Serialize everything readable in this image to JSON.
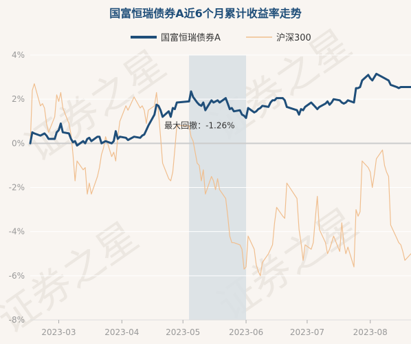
{
  "chart_data": {
    "type": "line",
    "title": "国富恒瑞债券A近6个月累计收益率走势",
    "xlabel": "",
    "ylabel": "",
    "ylim": [
      -8,
      4
    ],
    "yticks": [
      4,
      2,
      0,
      -2,
      -4,
      -6,
      -8
    ],
    "ytick_labels": [
      "4%",
      "2%",
      "0%",
      "-2%",
      "-4%",
      "-6%",
      "-8%"
    ],
    "x_range": [
      "2023-02-15",
      "2023-08-21"
    ],
    "x_ticks": [
      {
        "date": "2023-03-01",
        "label": "2023-03"
      },
      {
        "date": "2023-04-01",
        "label": "2023-04"
      },
      {
        "date": "2023-05-01",
        "label": "2023-05"
      },
      {
        "date": "2023-06-01",
        "label": "2023-06"
      },
      {
        "date": "2023-07-01",
        "label": "2023-07"
      },
      {
        "date": "2023-08-01",
        "label": "2023-08"
      }
    ],
    "grid": true,
    "legend_position": "top",
    "drawdown": {
      "label": "最大回撤：-1.26%",
      "start": "2023-05-04",
      "end": "2023-06-01",
      "color": "#d8dfe4"
    },
    "series": [
      {
        "name": "国富恒瑞债券A",
        "color": "#1f4e79",
        "points": [
          [
            "2023-02-15",
            0.0
          ],
          [
            "2023-02-16",
            0.5
          ],
          [
            "2023-02-17",
            0.45
          ],
          [
            "2023-02-20",
            0.35
          ],
          [
            "2023-02-21",
            0.4
          ],
          [
            "2023-02-22",
            0.45
          ],
          [
            "2023-02-23",
            0.35
          ],
          [
            "2023-02-24",
            0.2
          ],
          [
            "2023-02-27",
            0.2
          ],
          [
            "2023-02-28",
            0.5
          ],
          [
            "2023-03-01",
            0.6
          ],
          [
            "2023-03-02",
            0.9
          ],
          [
            "2023-03-03",
            0.5
          ],
          [
            "2023-03-06",
            0.45
          ],
          [
            "2023-03-07",
            0.2
          ],
          [
            "2023-03-08",
            0.05
          ],
          [
            "2023-03-09",
            0.1
          ],
          [
            "2023-03-10",
            -0.1
          ],
          [
            "2023-03-13",
            0.1
          ],
          [
            "2023-03-14",
            0.0
          ],
          [
            "2023-03-15",
            0.2
          ],
          [
            "2023-03-16",
            0.25
          ],
          [
            "2023-03-17",
            0.1
          ],
          [
            "2023-03-20",
            0.3
          ],
          [
            "2023-03-21",
            0.3
          ],
          [
            "2023-03-22",
            0.0
          ],
          [
            "2023-03-23",
            0.05
          ],
          [
            "2023-03-24",
            0.1
          ],
          [
            "2023-03-27",
            0.0
          ],
          [
            "2023-03-28",
            0.1
          ],
          [
            "2023-03-29",
            0.55
          ],
          [
            "2023-03-30",
            0.2
          ],
          [
            "2023-03-31",
            0.3
          ],
          [
            "2023-04-03",
            0.25
          ],
          [
            "2023-04-04",
            0.15
          ],
          [
            "2023-04-06",
            0.25
          ],
          [
            "2023-04-07",
            0.3
          ],
          [
            "2023-04-10",
            0.25
          ],
          [
            "2023-04-11",
            0.35
          ],
          [
            "2023-04-12",
            0.4
          ],
          [
            "2023-04-13",
            0.6
          ],
          [
            "2023-04-14",
            0.8
          ],
          [
            "2023-04-17",
            1.3
          ],
          [
            "2023-04-18",
            1.75
          ],
          [
            "2023-04-19",
            1.7
          ],
          [
            "2023-04-20",
            1.5
          ],
          [
            "2023-04-21",
            1.2
          ],
          [
            "2023-04-24",
            1.45
          ],
          [
            "2023-04-25",
            1.2
          ],
          [
            "2023-04-26",
            1.6
          ],
          [
            "2023-04-27",
            1.55
          ],
          [
            "2023-04-28",
            1.85
          ],
          [
            "2023-05-04",
            1.9
          ],
          [
            "2023-05-05",
            2.35
          ],
          [
            "2023-05-06",
            2.1
          ],
          [
            "2023-05-08",
            1.85
          ],
          [
            "2023-05-09",
            1.75
          ],
          [
            "2023-05-10",
            1.7
          ],
          [
            "2023-05-11",
            1.85
          ],
          [
            "2023-05-12",
            1.5
          ],
          [
            "2023-05-15",
            1.95
          ],
          [
            "2023-05-16",
            1.85
          ],
          [
            "2023-05-17",
            1.9
          ],
          [
            "2023-05-18",
            1.95
          ],
          [
            "2023-05-19",
            1.85
          ],
          [
            "2023-05-22",
            2.05
          ],
          [
            "2023-05-23",
            1.8
          ],
          [
            "2023-05-24",
            1.55
          ],
          [
            "2023-05-25",
            1.6
          ],
          [
            "2023-05-26",
            1.45
          ],
          [
            "2023-05-29",
            1.5
          ],
          [
            "2023-05-30",
            1.3
          ],
          [
            "2023-05-31",
            1.25
          ],
          [
            "2023-06-01",
            1.15
          ],
          [
            "2023-06-02",
            1.6
          ],
          [
            "2023-06-05",
            1.4
          ],
          [
            "2023-06-06",
            1.45
          ],
          [
            "2023-06-07",
            1.55
          ],
          [
            "2023-06-08",
            1.6
          ],
          [
            "2023-06-09",
            1.7
          ],
          [
            "2023-06-12",
            1.65
          ],
          [
            "2023-06-13",
            1.85
          ],
          [
            "2023-06-14",
            1.95
          ],
          [
            "2023-06-15",
            1.95
          ],
          [
            "2023-06-16",
            2.05
          ],
          [
            "2023-06-19",
            2.05
          ],
          [
            "2023-06-20",
            1.95
          ],
          [
            "2023-06-21",
            1.65
          ],
          [
            "2023-06-26",
            1.5
          ],
          [
            "2023-06-27",
            1.3
          ],
          [
            "2023-06-28",
            1.55
          ],
          [
            "2023-06-29",
            1.5
          ],
          [
            "2023-06-30",
            1.65
          ],
          [
            "2023-07-03",
            1.85
          ],
          [
            "2023-07-04",
            1.75
          ],
          [
            "2023-07-05",
            1.65
          ],
          [
            "2023-07-06",
            1.55
          ],
          [
            "2023-07-07",
            1.65
          ],
          [
            "2023-07-10",
            1.8
          ],
          [
            "2023-07-11",
            1.9
          ],
          [
            "2023-07-12",
            1.75
          ],
          [
            "2023-07-13",
            1.85
          ],
          [
            "2023-07-14",
            2.0
          ],
          [
            "2023-07-17",
            1.95
          ],
          [
            "2023-07-18",
            1.85
          ],
          [
            "2023-07-19",
            1.8
          ],
          [
            "2023-07-20",
            1.85
          ],
          [
            "2023-07-21",
            1.95
          ],
          [
            "2023-07-24",
            1.85
          ],
          [
            "2023-07-25",
            2.5
          ],
          [
            "2023-07-26",
            2.5
          ],
          [
            "2023-07-27",
            2.55
          ],
          [
            "2023-07-28",
            2.85
          ],
          [
            "2023-07-31",
            3.1
          ],
          [
            "2023-08-01",
            2.95
          ],
          [
            "2023-08-02",
            2.85
          ],
          [
            "2023-08-03",
            3.0
          ],
          [
            "2023-08-04",
            3.15
          ],
          [
            "2023-08-07",
            3.0
          ],
          [
            "2023-08-08",
            2.95
          ],
          [
            "2023-08-09",
            2.9
          ],
          [
            "2023-08-10",
            2.85
          ],
          [
            "2023-08-11",
            2.65
          ],
          [
            "2023-08-14",
            2.55
          ],
          [
            "2023-08-15",
            2.5
          ],
          [
            "2023-08-16",
            2.55
          ],
          [
            "2023-08-17",
            2.55
          ],
          [
            "2023-08-18",
            2.55
          ],
          [
            "2023-08-21",
            2.55
          ]
        ]
      },
      {
        "name": "沪深300",
        "color": "#f0be8e",
        "points": [
          [
            "2023-02-15",
            0.0
          ],
          [
            "2023-02-16",
            2.4
          ],
          [
            "2023-02-17",
            2.7
          ],
          [
            "2023-02-20",
            1.7
          ],
          [
            "2023-02-21",
            1.8
          ],
          [
            "2023-02-22",
            1.6
          ],
          [
            "2023-02-23",
            0.9
          ],
          [
            "2023-02-24",
            0.5
          ],
          [
            "2023-02-27",
            1.2
          ],
          [
            "2023-02-28",
            2.2
          ],
          [
            "2023-03-01",
            1.9
          ],
          [
            "2023-03-02",
            2.3
          ],
          [
            "2023-03-03",
            1.6
          ],
          [
            "2023-03-06",
            0.9
          ],
          [
            "2023-03-07",
            0.4
          ],
          [
            "2023-03-08",
            -0.5
          ],
          [
            "2023-03-09",
            -1.7
          ],
          [
            "2023-03-10",
            -0.8
          ],
          [
            "2023-03-13",
            -1.2
          ],
          [
            "2023-03-14",
            -1.1
          ],
          [
            "2023-03-15",
            -2.3
          ],
          [
            "2023-03-16",
            -1.8
          ],
          [
            "2023-03-17",
            -2.3
          ],
          [
            "2023-03-20",
            -1.5
          ],
          [
            "2023-03-21",
            -1.1
          ],
          [
            "2023-03-22",
            -0.5
          ],
          [
            "2023-03-23",
            -0.2
          ],
          [
            "2023-03-24",
            0.3
          ],
          [
            "2023-03-27",
            -0.6
          ],
          [
            "2023-03-28",
            -0.4
          ],
          [
            "2023-03-29",
            -0.8
          ],
          [
            "2023-03-30",
            0.3
          ],
          [
            "2023-03-31",
            1.0
          ],
          [
            "2023-04-03",
            1.7
          ],
          [
            "2023-04-04",
            1.5
          ],
          [
            "2023-04-06",
            1.9
          ],
          [
            "2023-04-07",
            2.1
          ],
          [
            "2023-04-10",
            1.6
          ],
          [
            "2023-04-11",
            1.7
          ],
          [
            "2023-04-12",
            1.5
          ],
          [
            "2023-04-13",
            0.9
          ],
          [
            "2023-04-14",
            1.5
          ],
          [
            "2023-04-17",
            1.7
          ],
          [
            "2023-04-18",
            2.3
          ],
          [
            "2023-04-19",
            1.4
          ],
          [
            "2023-04-20",
            0.3
          ],
          [
            "2023-04-21",
            -0.9
          ],
          [
            "2023-04-24",
            -1.6
          ],
          [
            "2023-04-25",
            -1.7
          ],
          [
            "2023-04-26",
            -1.3
          ],
          [
            "2023-04-27",
            -0.3
          ],
          [
            "2023-04-28",
            0.8
          ],
          [
            "2023-05-04",
            0.8
          ],
          [
            "2023-05-05",
            0.3
          ],
          [
            "2023-05-06",
            0.1
          ],
          [
            "2023-05-08",
            -0.9
          ],
          [
            "2023-05-09",
            -1.0
          ],
          [
            "2023-05-10",
            -1.7
          ],
          [
            "2023-05-11",
            -1.2
          ],
          [
            "2023-05-12",
            -2.3
          ],
          [
            "2023-05-15",
            -1.5
          ],
          [
            "2023-05-16",
            -1.7
          ],
          [
            "2023-05-17",
            -2.1
          ],
          [
            "2023-05-18",
            -1.6
          ],
          [
            "2023-05-19",
            -2.1
          ],
          [
            "2023-05-22",
            -2.5
          ],
          [
            "2023-05-23",
            -3.3
          ],
          [
            "2023-05-24",
            -4.2
          ],
          [
            "2023-05-25",
            -4.5
          ],
          [
            "2023-05-26",
            -4.5
          ],
          [
            "2023-05-29",
            -4.6
          ],
          [
            "2023-05-30",
            -4.8
          ],
          [
            "2023-05-31",
            -5.7
          ],
          [
            "2023-06-01",
            -5.6
          ],
          [
            "2023-06-02",
            -4.2
          ],
          [
            "2023-06-05",
            -4.8
          ],
          [
            "2023-06-06",
            -5.5
          ],
          [
            "2023-06-07",
            -5.8
          ],
          [
            "2023-06-08",
            -6.0
          ],
          [
            "2023-06-09",
            -5.4
          ],
          [
            "2023-06-12",
            -5.0
          ],
          [
            "2023-06-13",
            -4.8
          ],
          [
            "2023-06-14",
            -4.6
          ],
          [
            "2023-06-15",
            -3.6
          ],
          [
            "2023-06-16",
            -2.9
          ],
          [
            "2023-06-19",
            -3.3
          ],
          [
            "2023-06-20",
            -3.4
          ],
          [
            "2023-06-21",
            -1.8
          ],
          [
            "2023-06-26",
            -2.5
          ],
          [
            "2023-06-27",
            -3.9
          ],
          [
            "2023-06-28",
            -4.5
          ],
          [
            "2023-06-29",
            -5.3
          ],
          [
            "2023-06-30",
            -4.6
          ],
          [
            "2023-07-03",
            -4.8
          ],
          [
            "2023-07-04",
            -4.5
          ],
          [
            "2023-07-05",
            -3.4
          ],
          [
            "2023-07-06",
            -2.4
          ],
          [
            "2023-07-07",
            -3.9
          ],
          [
            "2023-07-10",
            -4.5
          ],
          [
            "2023-07-11",
            -5.0
          ],
          [
            "2023-07-12",
            -4.8
          ],
          [
            "2023-07-13",
            -4.5
          ],
          [
            "2023-07-14",
            -4.2
          ],
          [
            "2023-07-17",
            -4.9
          ],
          [
            "2023-07-18",
            -3.6
          ],
          [
            "2023-07-19",
            -4.5
          ],
          [
            "2023-07-20",
            -5.0
          ],
          [
            "2023-07-21",
            -4.7
          ],
          [
            "2023-07-24",
            -5.6
          ],
          [
            "2023-07-25",
            -3.0
          ],
          [
            "2023-07-26",
            -3.3
          ],
          [
            "2023-07-27",
            -3.1
          ],
          [
            "2023-07-28",
            -0.8
          ],
          [
            "2023-07-31",
            -1.1
          ],
          [
            "2023-08-01",
            -1.3
          ],
          [
            "2023-08-02",
            -2.0
          ],
          [
            "2023-08-03",
            -1.4
          ],
          [
            "2023-08-04",
            -0.7
          ],
          [
            "2023-08-07",
            -0.3
          ],
          [
            "2023-08-08",
            -1.0
          ],
          [
            "2023-08-09",
            -1.3
          ],
          [
            "2023-08-10",
            -1.5
          ],
          [
            "2023-08-11",
            -3.7
          ],
          [
            "2023-08-14",
            -4.3
          ],
          [
            "2023-08-15",
            -4.5
          ],
          [
            "2023-08-16",
            -4.6
          ],
          [
            "2023-08-17",
            -4.9
          ],
          [
            "2023-08-18",
            -5.3
          ],
          [
            "2023-08-21",
            -5.0
          ]
        ]
      }
    ]
  },
  "watermark": "证券之星",
  "colors": {
    "background": "#f9f5f1",
    "grid": "#ffffff",
    "zero_line": "#cccccc",
    "tick_text": "#999999",
    "title": "#1f4e79",
    "annotation": "#333333",
    "watermark": "#ece7e1"
  }
}
